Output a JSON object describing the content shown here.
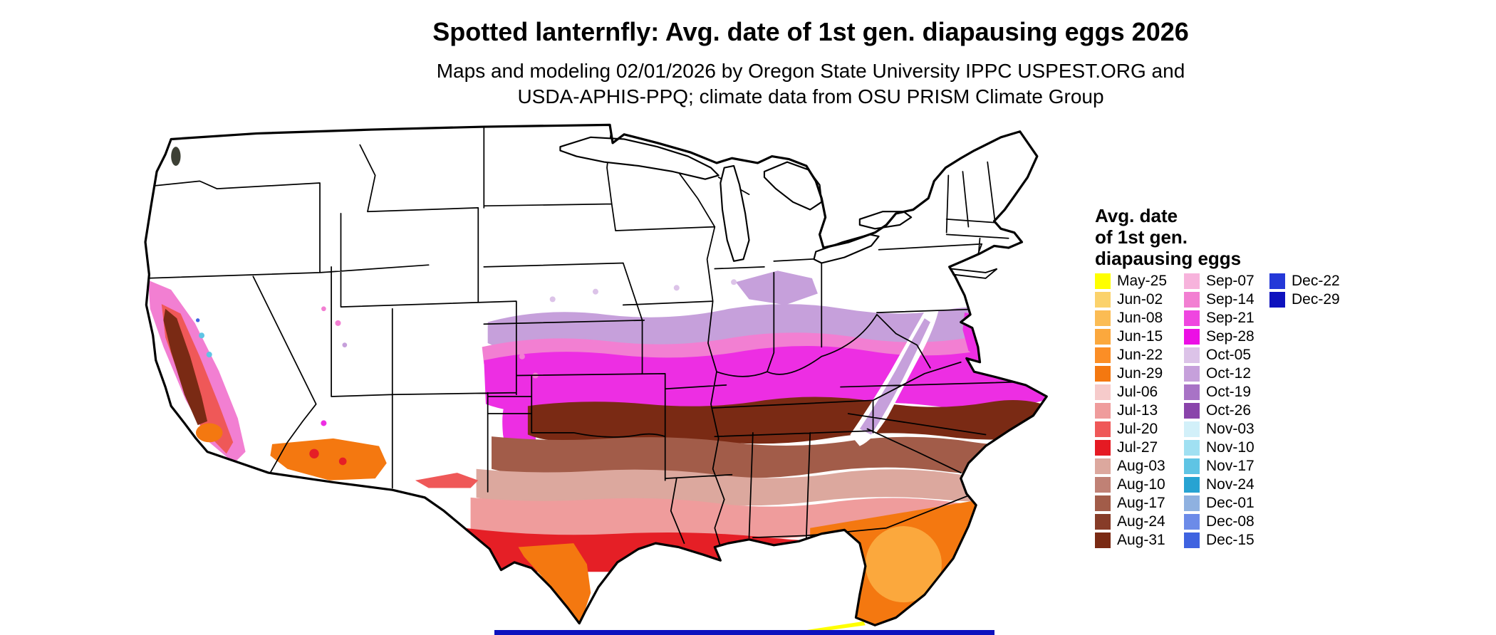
{
  "title": "Spotted lanternfly: Avg. date of 1st gen. diapausing eggs 2026",
  "subtitle": {
    "line1": "Maps and modeling 02/01/2026 by Oregon State University IPPC USPEST.ORG and",
    "line2": "USDA-APHIS-PPQ; climate data from OSU PRISM Climate Group"
  },
  "legend": {
    "title_lines": [
      "Avg. date",
      "of 1st gen.",
      "diapausing eggs"
    ],
    "columns": [
      {
        "entries": [
          {
            "label": "May-25",
            "color": "#FFFF00"
          },
          {
            "label": "Jun-02",
            "color": "#FBD26B"
          },
          {
            "label": "Jun-08",
            "color": "#FBBC54"
          },
          {
            "label": "Jun-15",
            "color": "#FBA83D"
          },
          {
            "label": "Jun-22",
            "color": "#FB8E26"
          },
          {
            "label": "Jun-29",
            "color": "#F47810"
          },
          {
            "label": "Jul-06",
            "color": "#F6CBCB"
          },
          {
            "label": "Jul-13",
            "color": "#EF9C9C"
          },
          {
            "label": "Jul-20",
            "color": "#EF5858"
          },
          {
            "label": "Jul-27",
            "color": "#E51A23"
          },
          {
            "label": "Aug-03",
            "color": "#DCA89E"
          },
          {
            "label": "Aug-10",
            "color": "#C08175"
          },
          {
            "label": "Aug-17",
            "color": "#A25C49"
          },
          {
            "label": "Aug-24",
            "color": "#873C28"
          },
          {
            "label": "Aug-31",
            "color": "#7A2A14"
          }
        ]
      },
      {
        "entries": [
          {
            "label": "Sep-07",
            "color": "#F7B3DC"
          },
          {
            "label": "Sep-14",
            "color": "#F27FD2"
          },
          {
            "label": "Sep-21",
            "color": "#EF46E0"
          },
          {
            "label": "Sep-28",
            "color": "#EC0FE5"
          },
          {
            "label": "Oct-05",
            "color": "#DCC3E8"
          },
          {
            "label": "Oct-12",
            "color": "#C6A0DB"
          },
          {
            "label": "Oct-19",
            "color": "#A873C6"
          },
          {
            "label": "Oct-26",
            "color": "#8A44AB"
          },
          {
            "label": "Nov-03",
            "color": "#D2F0F9"
          },
          {
            "label": "Nov-10",
            "color": "#A0E0F2"
          },
          {
            "label": "Nov-17",
            "color": "#5FC4E4"
          },
          {
            "label": "Nov-24",
            "color": "#27A3D2"
          },
          {
            "label": "Dec-01",
            "color": "#8FB1E0"
          },
          {
            "label": "Dec-08",
            "color": "#6C8BE8"
          },
          {
            "label": "Dec-15",
            "color": "#3F63E0"
          }
        ]
      },
      {
        "entries": [
          {
            "label": "Dec-22",
            "color": "#2438D8"
          },
          {
            "label": "Dec-29",
            "color": "#0E12BE"
          }
        ]
      }
    ]
  },
  "map": {
    "colors": {
      "white": "#FFFFFF",
      "oct_purple": "#C6A0DB",
      "oct_light_purple": "#DCC3E8",
      "sep_light_pink": "#F7B3DC",
      "sep_pink": "#F27FD2",
      "sep_magenta": "#ED2EE3",
      "aug_dark_brown": "#7A2A14",
      "aug_brown": "#A25C49",
      "aug_tan": "#DCA89E",
      "jul_pink": "#EF9C9C",
      "jul_red": "#E51F26",
      "jul_light_red": "#EF5858",
      "jun_orange": "#F47810",
      "jun_light_orange": "#FBA83D",
      "may_yellow": "#FFFF00",
      "nov_cyan": "#5FC4E4",
      "dec_blue": "#3F63E0",
      "dec_navy": "#0E12BE",
      "terrain_dark": "#3D4035"
    }
  }
}
